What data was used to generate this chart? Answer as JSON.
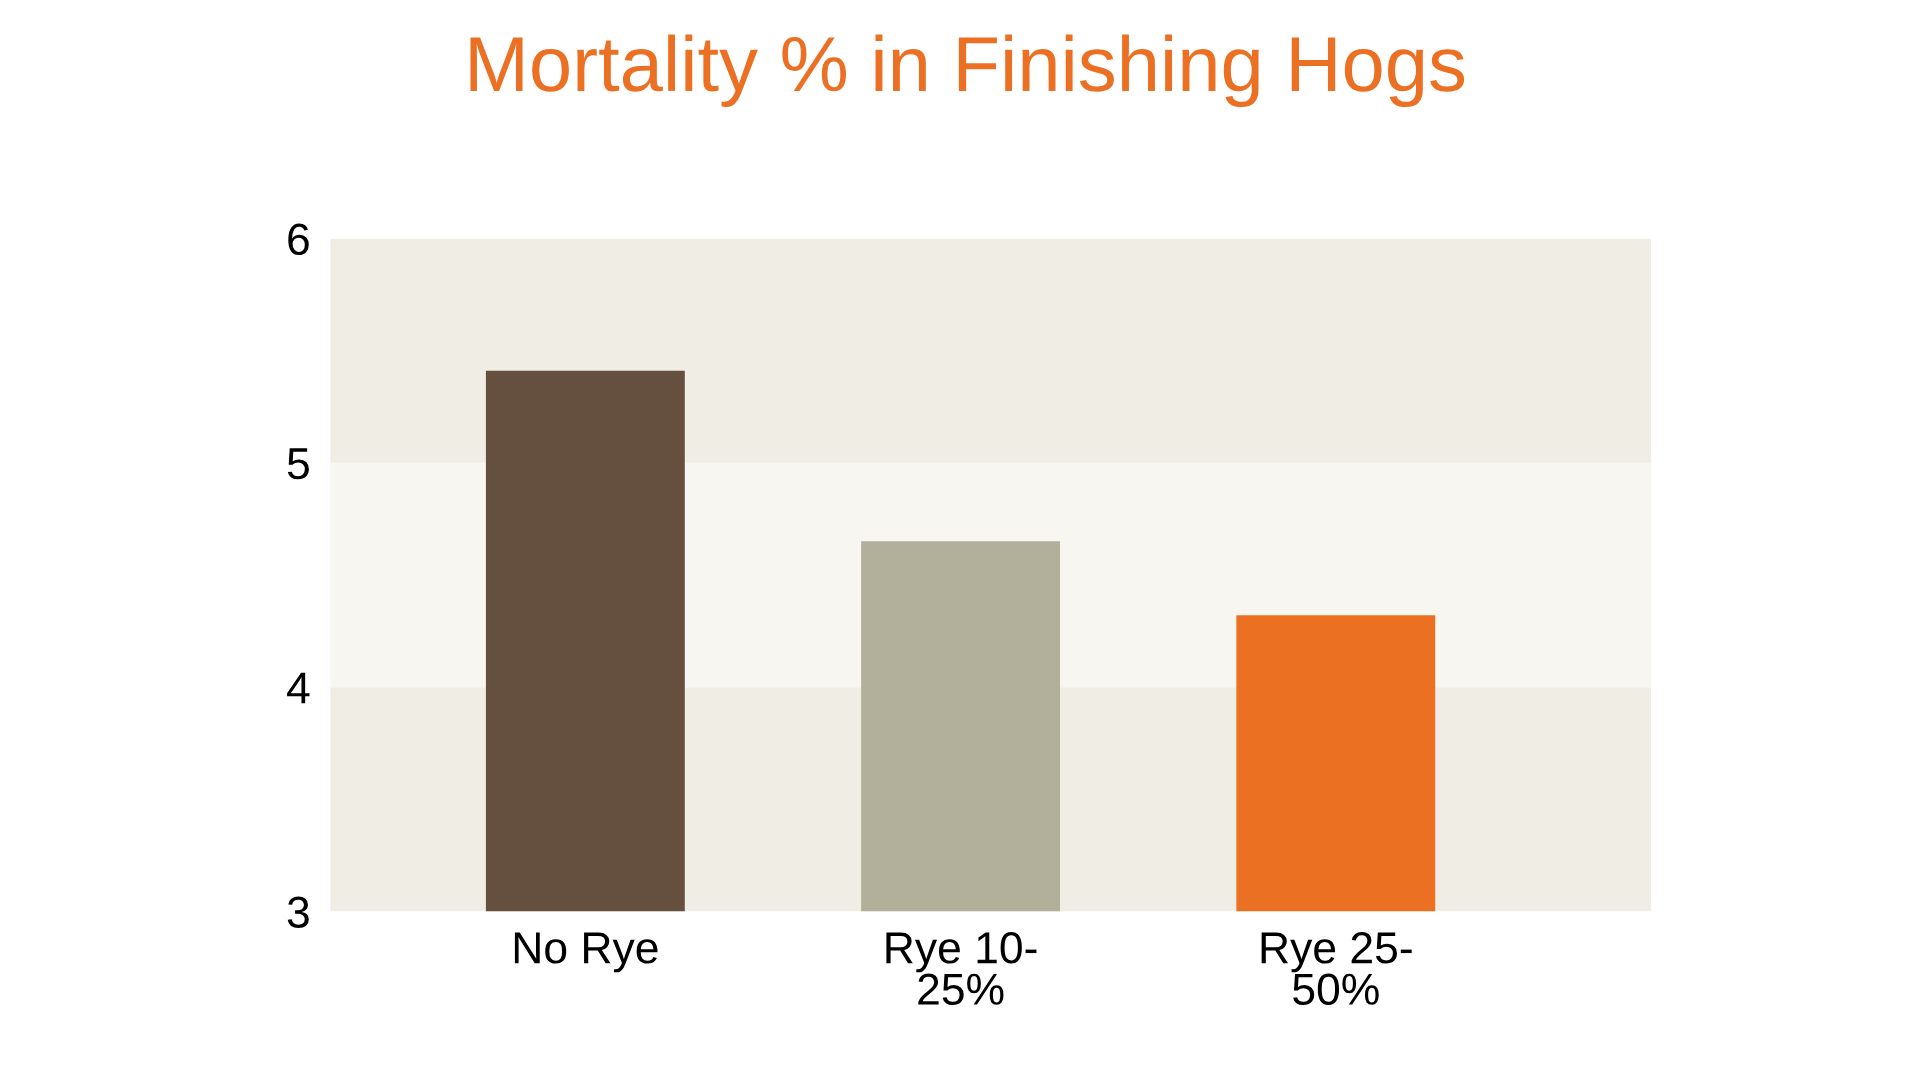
{
  "chart_data": {
    "type": "bar",
    "title": "Mortality % in Finishing Hogs",
    "categories": [
      "No Rye",
      "Rye 10-\n25%",
      "Rye 25-\n50%"
    ],
    "values": [
      5.41,
      4.65,
      4.32
    ],
    "colors": [
      "#65503f",
      "#b2af9b",
      "#ec7021"
    ],
    "ylim": [
      3,
      6
    ],
    "yticks": [
      3,
      4,
      5,
      6
    ],
    "grid": false,
    "bands": [
      {
        "axis": "y",
        "from": 3,
        "to": 4,
        "color": "#f0ede5"
      },
      {
        "axis": "y",
        "from": 4,
        "to": 5,
        "color": "#f7f6f1"
      },
      {
        "axis": "y",
        "from": 5,
        "to": 6,
        "color": "#f0ede5"
      }
    ]
  }
}
